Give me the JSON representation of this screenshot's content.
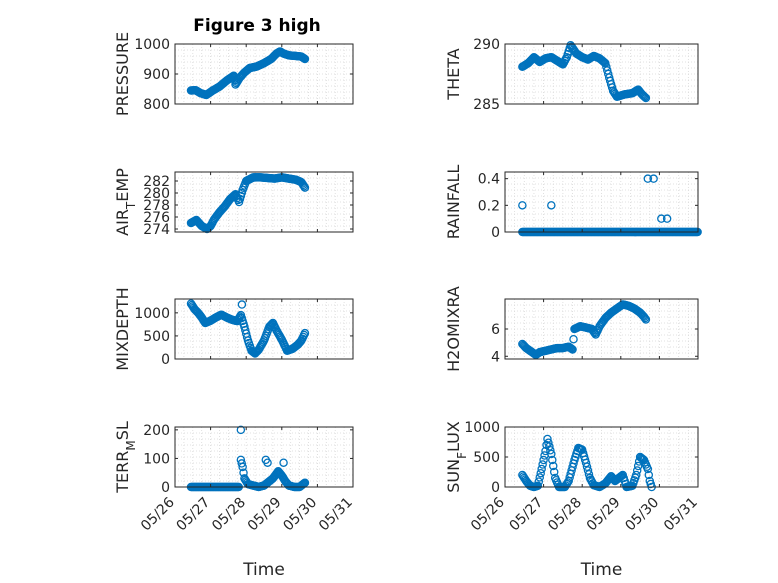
{
  "figure": {
    "title": "Figure 3 high",
    "xlabel": "Time"
  },
  "chart_data": [
    {
      "type": "scatter",
      "ylabel": "PRESSURE",
      "ylim": [
        800,
        1000
      ],
      "yticks": [
        800,
        900,
        1000
      ],
      "yticklabels": [
        "800",
        "900",
        "1000"
      ],
      "xlim": [
        0,
        5
      ],
      "xticks": [
        0,
        1,
        2,
        3,
        4,
        5
      ],
      "xticklabels": [
        "05/26",
        "05/27",
        "05/28",
        "05/29",
        "05/30",
        "05/31"
      ],
      "grid": true,
      "has_xticklabels": false,
      "segments": [
        [
          0.45,
          845
        ],
        [
          0.58,
          846
        ],
        [
          0.72,
          836
        ],
        [
          0.88,
          830
        ],
        [
          1.05,
          844
        ],
        [
          1.25,
          858
        ],
        [
          1.45,
          878
        ],
        [
          1.65,
          894
        ],
        [
          1.7,
          865
        ],
        [
          1.82,
          888
        ],
        [
          1.95,
          905
        ],
        [
          2.1,
          920
        ],
        [
          2.3,
          925
        ],
        [
          2.5,
          936
        ],
        [
          2.7,
          950
        ],
        [
          2.85,
          968
        ],
        [
          2.95,
          975
        ],
        [
          3.05,
          968
        ],
        [
          3.2,
          962
        ],
        [
          3.4,
          960
        ],
        [
          3.55,
          958
        ],
        [
          3.65,
          950
        ]
      ]
    },
    {
      "type": "scatter",
      "ylabel": "THETA",
      "ylim": [
        285,
        290
      ],
      "yticks": [
        285,
        290
      ],
      "yticklabels": [
        "285",
        "290"
      ],
      "xlim": [
        0,
        5
      ],
      "xticks": [
        0,
        1,
        2,
        3,
        4,
        5
      ],
      "xticklabels": [
        "05/26",
        "05/27",
        "05/28",
        "05/29",
        "05/30",
        "05/31"
      ],
      "grid": true,
      "has_xticklabels": false,
      "segments": [
        [
          0.45,
          288.1
        ],
        [
          0.6,
          288.4
        ],
        [
          0.75,
          288.9
        ],
        [
          0.9,
          288.5
        ],
        [
          1.05,
          288.8
        ],
        [
          1.2,
          288.9
        ],
        [
          1.35,
          288.6
        ],
        [
          1.5,
          288.3
        ],
        [
          1.6,
          288.9
        ],
        [
          1.7,
          289.9
        ],
        [
          1.85,
          289.2
        ],
        [
          2.0,
          288.9
        ],
        [
          2.15,
          288.7
        ],
        [
          2.3,
          289.0
        ],
        [
          2.45,
          288.8
        ],
        [
          2.6,
          288.4
        ],
        [
          2.7,
          287.2
        ],
        [
          2.8,
          286.1
        ],
        [
          2.9,
          285.6
        ],
        [
          3.1,
          285.8
        ],
        [
          3.3,
          285.9
        ],
        [
          3.45,
          286.2
        ],
        [
          3.55,
          285.8
        ],
        [
          3.65,
          285.5
        ]
      ]
    },
    {
      "type": "scatter",
      "ylabel": "AIR_TEMP",
      "ylim": [
        273.5,
        283.5
      ],
      "yticks": [
        274,
        276,
        278,
        280,
        282
      ],
      "yticklabels": [
        "274",
        "276",
        "278",
        "280",
        "282"
      ],
      "xlim": [
        0,
        5
      ],
      "xticks": [
        0,
        1,
        2,
        3,
        4,
        5
      ],
      "xticklabels": [
        "05/26",
        "05/27",
        "05/28",
        "05/29",
        "05/30",
        "05/31"
      ],
      "grid": true,
      "has_xticklabels": false,
      "segments": [
        [
          0.45,
          275
        ],
        [
          0.6,
          275.5
        ],
        [
          0.75,
          274.5
        ],
        [
          0.9,
          274
        ],
        [
          1.0,
          274.5
        ],
        [
          1.1,
          275.6
        ],
        [
          1.25,
          276.8
        ],
        [
          1.4,
          277.8
        ],
        [
          1.55,
          279
        ],
        [
          1.7,
          279.8
        ],
        [
          1.8,
          278.5
        ],
        [
          1.9,
          280.5
        ],
        [
          2.0,
          282
        ],
        [
          2.2,
          282.6
        ],
        [
          2.4,
          282.6
        ],
        [
          2.6,
          282.5
        ],
        [
          2.8,
          282.4
        ],
        [
          3.0,
          282.6
        ],
        [
          3.2,
          282.4
        ],
        [
          3.4,
          282.2
        ],
        [
          3.55,
          281.8
        ],
        [
          3.65,
          280.9
        ]
      ]
    },
    {
      "type": "scatter",
      "ylabel": "RAINFALL",
      "ylim": [
        0,
        0.45
      ],
      "yticks": [
        0,
        0.2,
        0.4
      ],
      "yticklabels": [
        "0",
        "0.2",
        "0.4"
      ],
      "xlim": [
        0,
        5
      ],
      "xticks": [
        0,
        1,
        2,
        3,
        4,
        5
      ],
      "xticklabels": [
        "05/26",
        "05/27",
        "05/28",
        "05/29",
        "05/30",
        "05/31"
      ],
      "grid": true,
      "has_xticklabels": false,
      "baseline": {
        "from": 0.45,
        "to": 4.99,
        "value": 0
      },
      "points": [
        [
          0.45,
          0.2
        ],
        [
          1.2,
          0.2
        ],
        [
          3.7,
          0.4
        ],
        [
          3.85,
          0.4
        ],
        [
          4.05,
          0.1
        ],
        [
          4.2,
          0.1
        ]
      ]
    },
    {
      "type": "scatter",
      "ylabel": "MIXDEPTH",
      "ylim": [
        0,
        1300
      ],
      "yticks": [
        0,
        500,
        1000
      ],
      "yticklabels": [
        "0",
        "500",
        "1000"
      ],
      "xlim": [
        0,
        5
      ],
      "xticks": [
        0,
        1,
        2,
        3,
        4,
        5
      ],
      "xticklabels": [
        "05/26",
        "05/27",
        "05/28",
        "05/29",
        "05/30",
        "05/31"
      ],
      "grid": true,
      "has_xticklabels": false,
      "segments": [
        [
          0.45,
          1200
        ],
        [
          0.55,
          1080
        ],
        [
          0.65,
          1000
        ],
        [
          0.75,
          900
        ],
        [
          0.85,
          780
        ],
        [
          1.0,
          830
        ],
        [
          1.15,
          900
        ],
        [
          1.3,
          960
        ],
        [
          1.45,
          900
        ],
        [
          1.6,
          850
        ],
        [
          1.75,
          820
        ],
        [
          1.85,
          950
        ],
        [
          1.95,
          700
        ],
        [
          2.05,
          400
        ],
        [
          2.15,
          180
        ],
        [
          2.25,
          120
        ],
        [
          2.35,
          200
        ],
        [
          2.5,
          400
        ],
        [
          2.65,
          700
        ],
        [
          2.75,
          780
        ],
        [
          2.85,
          620
        ],
        [
          3.0,
          420
        ],
        [
          3.15,
          180
        ],
        [
          3.3,
          220
        ],
        [
          3.45,
          310
        ],
        [
          3.55,
          400
        ],
        [
          3.65,
          560
        ]
      ],
      "points": [
        [
          1.88,
          1180
        ]
      ]
    },
    {
      "type": "scatter",
      "ylabel": "H2OMIXRA",
      "ylim": [
        3.8,
        8.2
      ],
      "yticks": [
        4,
        6
      ],
      "yticklabels": [
        "4",
        "6"
      ],
      "xlim": [
        0,
        5
      ],
      "xticks": [
        0,
        1,
        2,
        3,
        4,
        5
      ],
      "xticklabels": [
        "05/26",
        "05/27",
        "05/28",
        "05/29",
        "05/30",
        "05/31"
      ],
      "grid": true,
      "has_xticklabels": false,
      "segments": [
        [
          0.45,
          4.9
        ],
        [
          0.55,
          4.6
        ],
        [
          0.65,
          4.4
        ],
        [
          0.8,
          4.1
        ],
        [
          0.9,
          4.3
        ],
        [
          1.05,
          4.4
        ],
        [
          1.2,
          4.5
        ],
        [
          1.35,
          4.6
        ],
        [
          1.5,
          4.6
        ],
        [
          1.65,
          4.7
        ],
        [
          1.75,
          4.5
        ],
        [
          1.8,
          6.0
        ],
        [
          1.95,
          6.2
        ],
        [
          2.1,
          6.1
        ],
        [
          2.25,
          6.0
        ],
        [
          2.35,
          5.6
        ],
        [
          2.45,
          6.2
        ],
        [
          2.6,
          6.8
        ],
        [
          2.75,
          7.2
        ],
        [
          2.9,
          7.5
        ],
        [
          3.05,
          7.8
        ],
        [
          3.2,
          7.7
        ],
        [
          3.35,
          7.5
        ],
        [
          3.5,
          7.2
        ],
        [
          3.6,
          6.9
        ],
        [
          3.65,
          6.7
        ]
      ]
    },
    {
      "type": "scatter",
      "ylabel": "TERR_MSL",
      "ylim": [
        0,
        210
      ],
      "yticks": [
        0,
        100,
        200
      ],
      "yticklabels": [
        "0",
        "100",
        "200"
      ],
      "xlim": [
        0,
        5
      ],
      "xticks": [
        0,
        1,
        2,
        3,
        4,
        5
      ],
      "xticklabels": [
        "05/26",
        "05/27",
        "05/28",
        "05/29",
        "05/30",
        "05/31"
      ],
      "grid": true,
      "has_xticklabels": true,
      "baseline": {
        "from": 0.45,
        "to": 1.8,
        "value": 0
      },
      "segments": [
        [
          1.85,
          95
        ],
        [
          1.9,
          70
        ],
        [
          1.95,
          30
        ],
        [
          2.05,
          10
        ],
        [
          2.2,
          5
        ],
        [
          2.35,
          0
        ],
        [
          2.5,
          5
        ],
        [
          2.65,
          20
        ],
        [
          2.75,
          30
        ],
        [
          2.9,
          55
        ],
        [
          3.0,
          40
        ],
        [
          3.1,
          20
        ],
        [
          3.2,
          5
        ],
        [
          3.35,
          0
        ],
        [
          3.5,
          0
        ],
        [
          3.6,
          10
        ],
        [
          3.65,
          15
        ]
      ],
      "points": [
        [
          1.85,
          200
        ],
        [
          2.55,
          95
        ],
        [
          2.6,
          85
        ],
        [
          3.05,
          85
        ]
      ]
    },
    {
      "type": "scatter",
      "ylabel": "SUN_FLUX",
      "ylim": [
        0,
        1000
      ],
      "yticks": [
        0,
        500,
        1000
      ],
      "yticklabels": [
        "0",
        "500",
        "1000"
      ],
      "xlim": [
        0,
        5
      ],
      "xticks": [
        0,
        1,
        2,
        3,
        4,
        5
      ],
      "xticklabels": [
        "05/26",
        "05/27",
        "05/28",
        "05/29",
        "05/30",
        "05/31"
      ],
      "grid": true,
      "has_xticklabels": true,
      "segments": [
        [
          0.45,
          200
        ],
        [
          0.55,
          100
        ],
        [
          0.65,
          20
        ],
        [
          0.75,
          0
        ],
        [
          0.85,
          20
        ],
        [
          0.95,
          300
        ],
        [
          1.05,
          600
        ],
        [
          1.1,
          800
        ],
        [
          1.2,
          550
        ],
        [
          1.3,
          150
        ],
        [
          1.4,
          0
        ],
        [
          1.55,
          0
        ],
        [
          1.65,
          100
        ],
        [
          1.8,
          450
        ],
        [
          1.9,
          650
        ],
        [
          2.0,
          620
        ],
        [
          2.1,
          400
        ],
        [
          2.2,
          150
        ],
        [
          2.3,
          30
        ],
        [
          2.45,
          0
        ],
        [
          2.6,
          60
        ],
        [
          2.75,
          180
        ],
        [
          2.85,
          100
        ],
        [
          2.95,
          150
        ],
        [
          3.05,
          200
        ],
        [
          3.15,
          0
        ],
        [
          3.3,
          20
        ],
        [
          3.4,
          200
        ],
        [
          3.5,
          500
        ],
        [
          3.6,
          450
        ],
        [
          3.7,
          300
        ],
        [
          3.75,
          100
        ],
        [
          3.8,
          0
        ]
      ]
    }
  ]
}
